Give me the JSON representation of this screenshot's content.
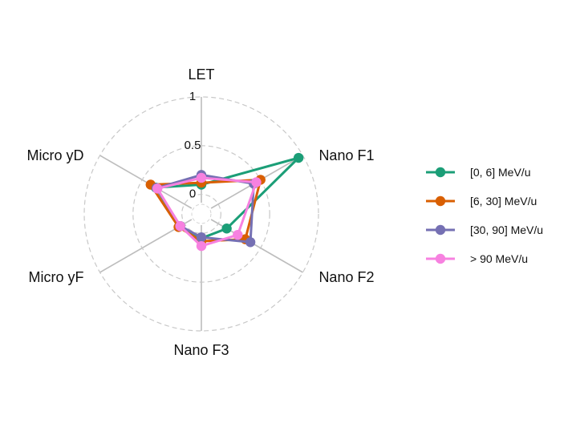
{
  "chart_data": {
    "type": "radar",
    "axes": [
      "LET",
      "Nano F1",
      "Nano F2",
      "Nano F3",
      "Micro yF",
      "Micro yD"
    ],
    "ticks": [
      {
        "value": 0,
        "label": "0"
      },
      {
        "value": 0.5,
        "label": "0.5"
      },
      {
        "value": 1,
        "label": "1"
      }
    ],
    "rlim": [
      -0.2,
      1
    ],
    "grid": true,
    "legend_position": "right",
    "series": [
      {
        "name": "[0, 6] MeV/u",
        "color": "#1b9e77",
        "values": [
          0.1,
          0.95,
          0.1,
          0.05,
          0.05,
          0.34
        ]
      },
      {
        "name": "[6, 30] MeV/u",
        "color": "#d95f02",
        "values": [
          0.12,
          0.5,
          0.32,
          0.08,
          0.07,
          0.4
        ]
      },
      {
        "name": "[30, 90] MeV/u",
        "color": "#7570b3",
        "values": [
          0.2,
          0.42,
          0.38,
          0.04,
          0.05,
          0.33
        ]
      },
      {
        "name": "> 90 MeV/u",
        "color": "#f781e0",
        "values": [
          0.17,
          0.45,
          0.23,
          0.13,
          0.05,
          0.32
        ]
      }
    ]
  }
}
